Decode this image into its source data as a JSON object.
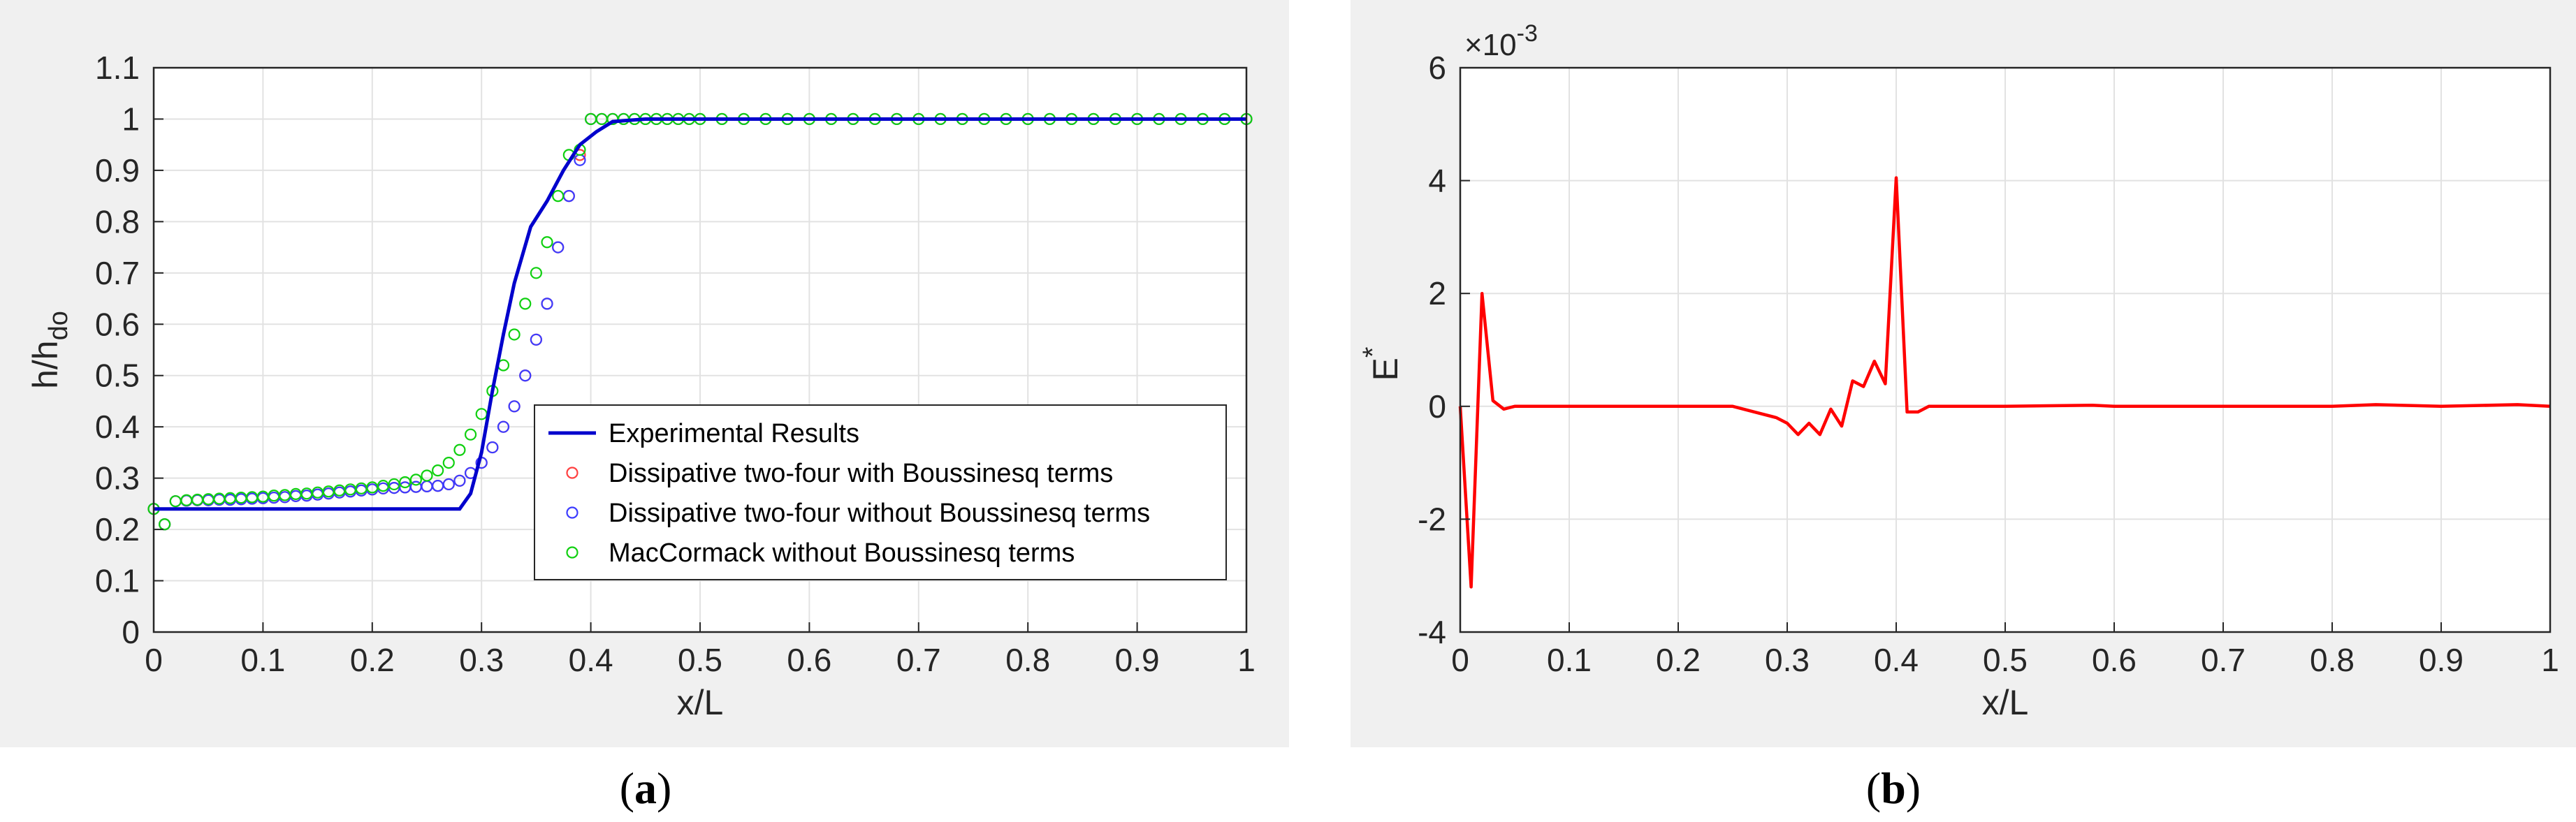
{
  "colors": {
    "frame_bg": "#f0f0f0",
    "plot_bg": "#ffffff",
    "grid": "#e2e2e2",
    "axis": "#262626",
    "experimental": "#0000cc",
    "with_boussinesq": "#ff4040",
    "without_boussinesq": "#3c3cff",
    "maccormack": "#10d010",
    "error": "#ff0000"
  },
  "chart_data": [
    {
      "type": "line",
      "caption_letter": "a",
      "xlabel": "x/L",
      "ylabel": "h/h",
      "ylabel_sub": "do",
      "xlim": [
        0,
        1
      ],
      "ylim": [
        0,
        1.1
      ],
      "grid": true,
      "legend_position": "bottom-right",
      "xticks": [
        "0",
        "0.1",
        "0.2",
        "0.3",
        "0.4",
        "0.5",
        "0.6",
        "0.7",
        "0.8",
        "0.9",
        "1"
      ],
      "yticks": [
        "0",
        "0.1",
        "0.2",
        "0.3",
        "0.4",
        "0.5",
        "0.6",
        "0.7",
        "0.8",
        "0.9",
        "1",
        "1.1"
      ],
      "series": [
        {
          "name": "Experimental Results",
          "style": "line",
          "x": [
            0,
            0.28,
            0.29,
            0.3,
            0.31,
            0.32,
            0.33,
            0.345,
            0.36,
            0.375,
            0.39,
            0.405,
            0.42,
            0.45,
            1.0
          ],
          "y": [
            0.24,
            0.24,
            0.27,
            0.35,
            0.47,
            0.58,
            0.68,
            0.79,
            0.84,
            0.9,
            0.95,
            0.975,
            0.995,
            1.0,
            1.0
          ]
        },
        {
          "name": "Dissipative two-four with Boussinesq terms",
          "style": "markers",
          "x": [
            0,
            0.01,
            0.02,
            0.03,
            0.04,
            0.05,
            0.06,
            0.07,
            0.08,
            0.09,
            0.1,
            0.11,
            0.12,
            0.13,
            0.14,
            0.15,
            0.16,
            0.17,
            0.18,
            0.19,
            0.2,
            0.21,
            0.22,
            0.23,
            0.24,
            0.25,
            0.26,
            0.27,
            0.28,
            0.29,
            0.3,
            0.31,
            0.32,
            0.33,
            0.34,
            0.35,
            0.36,
            0.37,
            0.38,
            0.39,
            0.4,
            0.41,
            0.42,
            0.43,
            0.44,
            0.45,
            0.46,
            0.47,
            0.48,
            0.49,
            0.5,
            0.52,
            0.54,
            0.56,
            0.58,
            0.6,
            0.62,
            0.64,
            0.66,
            0.68,
            0.7,
            0.72,
            0.74,
            0.76,
            0.78,
            0.8,
            0.82,
            0.84,
            0.86,
            0.88,
            0.9,
            0.92,
            0.94,
            0.96,
            0.98,
            1.0
          ],
          "y": [
            0.24,
            0.21,
            0.255,
            0.256,
            0.257,
            0.257,
            0.258,
            0.258,
            0.259,
            0.26,
            0.261,
            0.262,
            0.263,
            0.265,
            0.266,
            0.268,
            0.27,
            0.272,
            0.274,
            0.276,
            0.278,
            0.28,
            0.281,
            0.282,
            0.283,
            0.284,
            0.285,
            0.288,
            0.295,
            0.31,
            0.33,
            0.36,
            0.4,
            0.44,
            0.5,
            0.57,
            0.64,
            0.75,
            0.85,
            0.93,
            1.0,
            1.0,
            1.0,
            1.0,
            1.0,
            1.0,
            1.0,
            1.0,
            1.0,
            1.0,
            1.0,
            1.0,
            1.0,
            1.0,
            1.0,
            1.0,
            1.0,
            1.0,
            1.0,
            1.0,
            1.0,
            1.0,
            1.0,
            1.0,
            1.0,
            1.0,
            1.0,
            1.0,
            1.0,
            1.0,
            1.0,
            1.0,
            1.0,
            1.0,
            1.0,
            1.0
          ]
        },
        {
          "name": "Dissipative two-four without Boussinesq terms",
          "style": "markers",
          "x": [
            0,
            0.01,
            0.02,
            0.03,
            0.04,
            0.05,
            0.06,
            0.07,
            0.08,
            0.09,
            0.1,
            0.11,
            0.12,
            0.13,
            0.14,
            0.15,
            0.16,
            0.17,
            0.18,
            0.19,
            0.2,
            0.21,
            0.22,
            0.23,
            0.24,
            0.25,
            0.26,
            0.27,
            0.28,
            0.29,
            0.3,
            0.31,
            0.32,
            0.33,
            0.34,
            0.35,
            0.36,
            0.37,
            0.38,
            0.39,
            0.4,
            0.41,
            0.42,
            0.43,
            0.44,
            0.45,
            0.46,
            0.47,
            0.48,
            0.49,
            0.5,
            0.52,
            0.54,
            0.56,
            0.58,
            0.6,
            0.62,
            0.64,
            0.66,
            0.68,
            0.7,
            0.72,
            0.74,
            0.76,
            0.78,
            0.8,
            0.82,
            0.84,
            0.86,
            0.88,
            0.9,
            0.92,
            0.94,
            0.96,
            0.98,
            1.0
          ],
          "y": [
            0.24,
            0.21,
            0.255,
            0.256,
            0.257,
            0.257,
            0.258,
            0.258,
            0.259,
            0.26,
            0.261,
            0.262,
            0.263,
            0.265,
            0.266,
            0.268,
            0.27,
            0.272,
            0.274,
            0.276,
            0.278,
            0.28,
            0.281,
            0.282,
            0.283,
            0.284,
            0.285,
            0.288,
            0.295,
            0.31,
            0.33,
            0.36,
            0.4,
            0.44,
            0.5,
            0.57,
            0.64,
            0.75,
            0.85,
            0.92,
            1.0,
            1.0,
            1.0,
            1.0,
            1.0,
            1.0,
            1.0,
            1.0,
            1.0,
            1.0,
            1.0,
            1.0,
            1.0,
            1.0,
            1.0,
            1.0,
            1.0,
            1.0,
            1.0,
            1.0,
            1.0,
            1.0,
            1.0,
            1.0,
            1.0,
            1.0,
            1.0,
            1.0,
            1.0,
            1.0,
            1.0,
            1.0,
            1.0,
            1.0,
            1.0,
            1.0
          ]
        },
        {
          "name": "MacCormack without Boussinesq terms",
          "style": "markers",
          "x": [
            0,
            0.01,
            0.02,
            0.03,
            0.04,
            0.05,
            0.06,
            0.07,
            0.08,
            0.09,
            0.1,
            0.11,
            0.12,
            0.13,
            0.14,
            0.15,
            0.16,
            0.17,
            0.18,
            0.19,
            0.2,
            0.21,
            0.22,
            0.23,
            0.24,
            0.25,
            0.26,
            0.27,
            0.28,
            0.29,
            0.3,
            0.31,
            0.32,
            0.33,
            0.34,
            0.35,
            0.36,
            0.37,
            0.38,
            0.39,
            0.4,
            0.41,
            0.42,
            0.43,
            0.44,
            0.45,
            0.46,
            0.47,
            0.48,
            0.49,
            0.5,
            0.52,
            0.54,
            0.56,
            0.58,
            0.6,
            0.62,
            0.64,
            0.66,
            0.68,
            0.7,
            0.72,
            0.74,
            0.76,
            0.78,
            0.8,
            0.82,
            0.84,
            0.86,
            0.88,
            0.9,
            0.92,
            0.94,
            0.96,
            0.98,
            1.0
          ],
          "y": [
            0.24,
            0.21,
            0.255,
            0.257,
            0.258,
            0.259,
            0.26,
            0.261,
            0.262,
            0.263,
            0.264,
            0.266,
            0.267,
            0.269,
            0.27,
            0.272,
            0.274,
            0.276,
            0.278,
            0.28,
            0.282,
            0.285,
            0.288,
            0.292,
            0.297,
            0.305,
            0.315,
            0.33,
            0.355,
            0.385,
            0.425,
            0.47,
            0.52,
            0.58,
            0.64,
            0.7,
            0.76,
            0.85,
            0.93,
            0.94,
            1.0,
            1.0,
            1.0,
            1.0,
            1.0,
            1.0,
            1.0,
            1.0,
            1.0,
            1.0,
            1.0,
            1.0,
            1.0,
            1.0,
            1.0,
            1.0,
            1.0,
            1.0,
            1.0,
            1.0,
            1.0,
            1.0,
            1.0,
            1.0,
            1.0,
            1.0,
            1.0,
            1.0,
            1.0,
            1.0,
            1.0,
            1.0,
            1.0,
            1.0,
            1.0,
            1.0
          ]
        }
      ]
    },
    {
      "type": "line",
      "caption_letter": "b",
      "xlabel": "x/L",
      "ylabel": "E",
      "ylabel_sup": "*",
      "exponent_label": "×10",
      "exponent_power": "-3",
      "xlim": [
        0,
        1
      ],
      "ylim": [
        -4,
        6
      ],
      "grid": true,
      "xticks": [
        "0",
        "0.1",
        "0.2",
        "0.3",
        "0.4",
        "0.5",
        "0.6",
        "0.7",
        "0.8",
        "0.9",
        "1"
      ],
      "yticks": [
        "-4",
        "-2",
        "0",
        "2",
        "4",
        "6"
      ],
      "series": [
        {
          "style": "line",
          "x": [
            0,
            0.01,
            0.02,
            0.03,
            0.04,
            0.05,
            0.1,
            0.2,
            0.25,
            0.27,
            0.29,
            0.3,
            0.31,
            0.32,
            0.33,
            0.34,
            0.35,
            0.36,
            0.37,
            0.38,
            0.39,
            0.4,
            0.41,
            0.42,
            0.43,
            0.44,
            0.5,
            0.58,
            0.6,
            0.7,
            0.8,
            0.84,
            0.9,
            0.97,
            1.0
          ],
          "y": [
            0,
            -3.2,
            2.0,
            0.1,
            -0.05,
            0.0,
            0.0,
            0.0,
            0.0,
            -0.1,
            -0.2,
            -0.3,
            -0.5,
            -0.3,
            -0.5,
            -0.05,
            -0.35,
            0.45,
            0.35,
            0.8,
            0.4,
            4.05,
            -0.1,
            -0.1,
            0.0,
            0.0,
            0.0,
            0.02,
            0.0,
            0.0,
            0.0,
            0.03,
            0.0,
            0.03,
            0.0
          ]
        }
      ]
    }
  ]
}
